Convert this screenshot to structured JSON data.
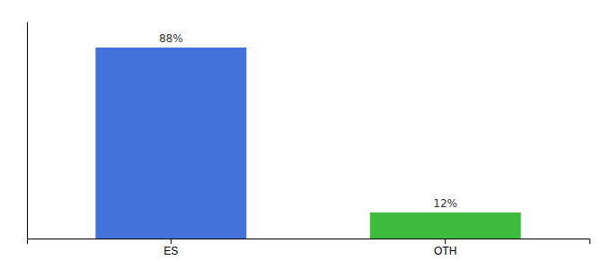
{
  "chart_data": {
    "type": "bar",
    "categories": [
      "ES",
      "OTH"
    ],
    "values": [
      88,
      12
    ],
    "value_labels": [
      "88%",
      "12%"
    ],
    "colors": [
      "#4472db",
      "#3dbb3d"
    ],
    "ylim": [
      0,
      100
    ],
    "data_labels": true,
    "tick_labels": "x",
    "grid": false
  }
}
